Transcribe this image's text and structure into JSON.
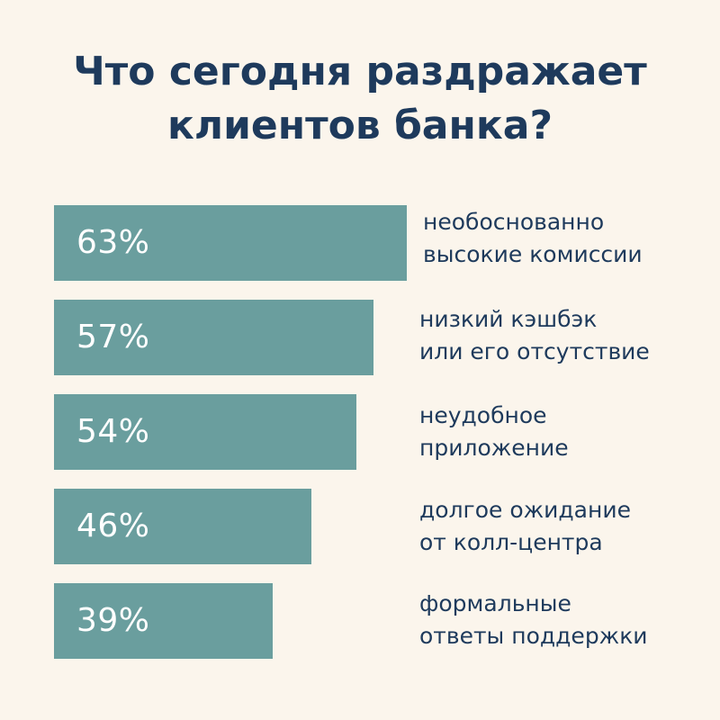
{
  "colors": {
    "background": "#fbf5ec",
    "bar": "#6a9e9e",
    "text": "#1e3a5c",
    "value_text": "#ffffff"
  },
  "title_lines": [
    "Что сегодня раздражает",
    "клиентов банка?"
  ],
  "chart_data": {
    "type": "bar",
    "orientation": "horizontal",
    "title": "Что сегодня раздражает клиентов банка?",
    "xlim": [
      0,
      100
    ],
    "grid": false,
    "categories": [
      [
        "необоснованно",
        "высокие комиссии"
      ],
      [
        "низкий кэшбэк",
        "или его отсутствие"
      ],
      [
        "неудобное",
        "приложение"
      ],
      [
        "долгое ожидание",
        "от колл-центра"
      ],
      [
        "формальные",
        "ответы поддержки"
      ]
    ],
    "values": [
      63,
      57,
      54,
      46,
      39
    ],
    "value_labels": [
      "63%",
      "57%",
      "54%",
      "46%",
      "39%"
    ]
  }
}
